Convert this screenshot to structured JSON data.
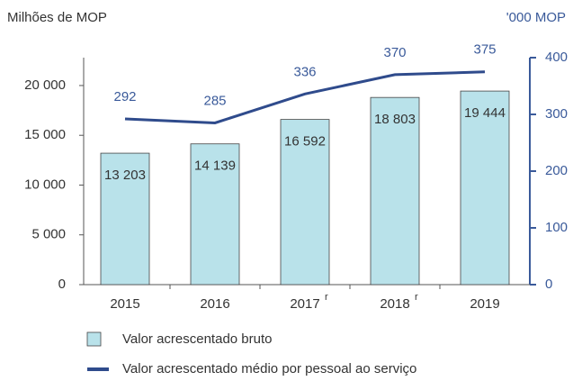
{
  "chart_data": {
    "type": "bar-line",
    "y_label": "Milhões de MOP",
    "y2_label": "'000 MOP",
    "categories": [
      "2015",
      "2016",
      "2017",
      "2018",
      "2019"
    ],
    "category_notes": [
      null,
      null,
      "r",
      "r",
      null
    ],
    "series": [
      {
        "name": "Valor acrescentado bruto",
        "type": "bar",
        "color": "#b9e2ea",
        "values": [
          13203,
          14139,
          16592,
          18803,
          19444
        ],
        "value_labels": [
          "13 203",
          "14 139",
          "16 592",
          "18 803",
          "19 444"
        ]
      },
      {
        "name": "Valor acrescentado médio por pessoal ao serviço",
        "type": "line",
        "color": "#2f4b8c",
        "axis": "y2",
        "values": [
          292,
          285,
          336,
          370,
          375
        ]
      }
    ],
    "ylim": [
      0,
      22800
    ],
    "yticks": [
      0,
      {
        "value": 5000,
        "label": "5 000"
      },
      {
        "value": 10000,
        "label": "10 000"
      },
      {
        "value": 15000,
        "label": "15 000"
      },
      {
        "value": 20000,
        "label": "20 000"
      }
    ],
    "y2lim": [
      0,
      400
    ],
    "y2ticks": [
      0,
      100,
      200,
      300,
      400
    ]
  }
}
